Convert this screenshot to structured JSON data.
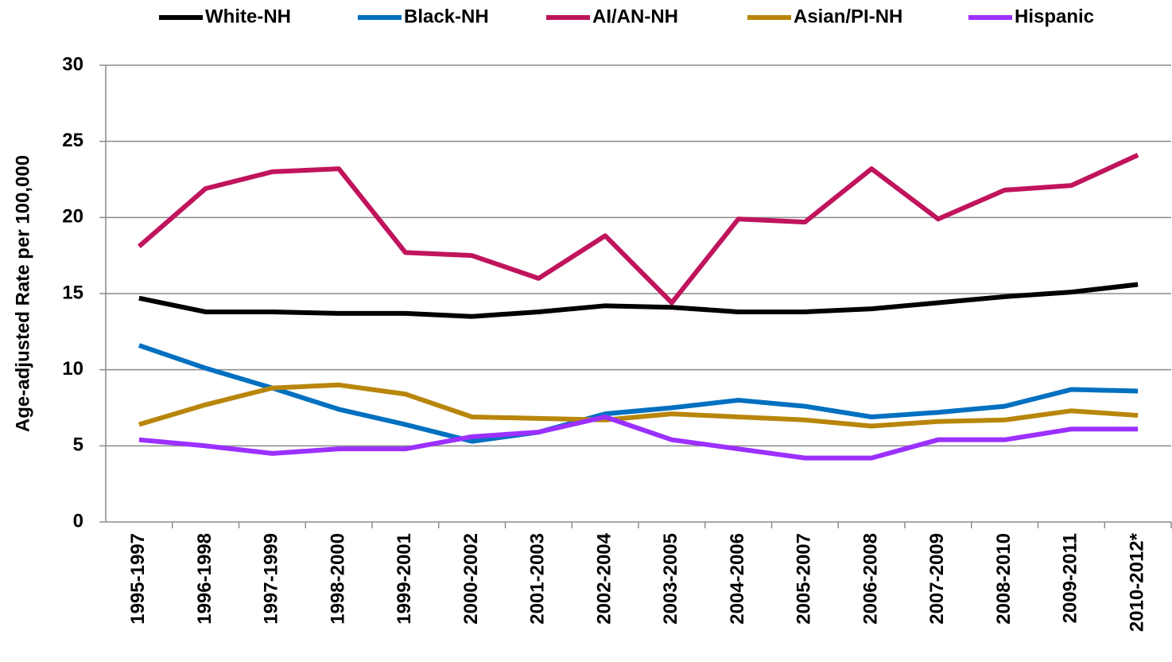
{
  "chart_data": {
    "type": "line",
    "y_label": "Age-adjusted Rate per 100,000",
    "categories": [
      "1995-1997",
      "1996-1998",
      "1997-1999",
      "1998-2000",
      "1999-2001",
      "2000-2002",
      "2001-2003",
      "2002-2004",
      "2003-2005",
      "2004-2006",
      "2005-2007",
      "2006-2008",
      "2007-2009",
      "2008-2010",
      "2009-2011",
      "2010-2012*"
    ],
    "series": [
      {
        "name": "White-NH",
        "color": "#000000",
        "values": [
          14.7,
          13.8,
          13.8,
          13.7,
          13.7,
          13.5,
          13.8,
          14.2,
          14.1,
          13.8,
          13.8,
          14.0,
          14.4,
          14.8,
          15.1,
          15.6
        ]
      },
      {
        "name": "Black-NH",
        "color": "#0070c0",
        "values": [
          11.6,
          10.1,
          8.8,
          7.4,
          6.4,
          5.3,
          5.9,
          7.1,
          7.5,
          8.0,
          7.6,
          6.9,
          7.2,
          7.6,
          8.7,
          8.6
        ]
      },
      {
        "name": "AI/AN-NH",
        "color": "#c0145c",
        "values": [
          18.1,
          21.9,
          23.0,
          23.2,
          17.7,
          17.5,
          16.0,
          18.8,
          14.4,
          19.9,
          19.7,
          23.2,
          19.9,
          21.8,
          22.1,
          24.1
        ]
      },
      {
        "name": "Asian/PI-NH",
        "color": "#b8860b",
        "values": [
          6.4,
          7.7,
          8.8,
          9.0,
          8.4,
          6.9,
          6.8,
          6.7,
          7.1,
          6.9,
          6.7,
          6.3,
          6.6,
          6.7,
          7.3,
          7.0
        ]
      },
      {
        "name": "Hispanic",
        "color": "#9b30ff",
        "values": [
          5.4,
          5.0,
          4.5,
          4.8,
          4.8,
          5.6,
          5.9,
          6.9,
          5.4,
          4.8,
          4.2,
          4.2,
          5.4,
          5.4,
          6.1,
          6.1
        ]
      }
    ],
    "ylim": [
      0,
      30
    ],
    "yticks": [
      0,
      5,
      10,
      15,
      20,
      25,
      30
    ],
    "grid": true,
    "legend": "top"
  }
}
